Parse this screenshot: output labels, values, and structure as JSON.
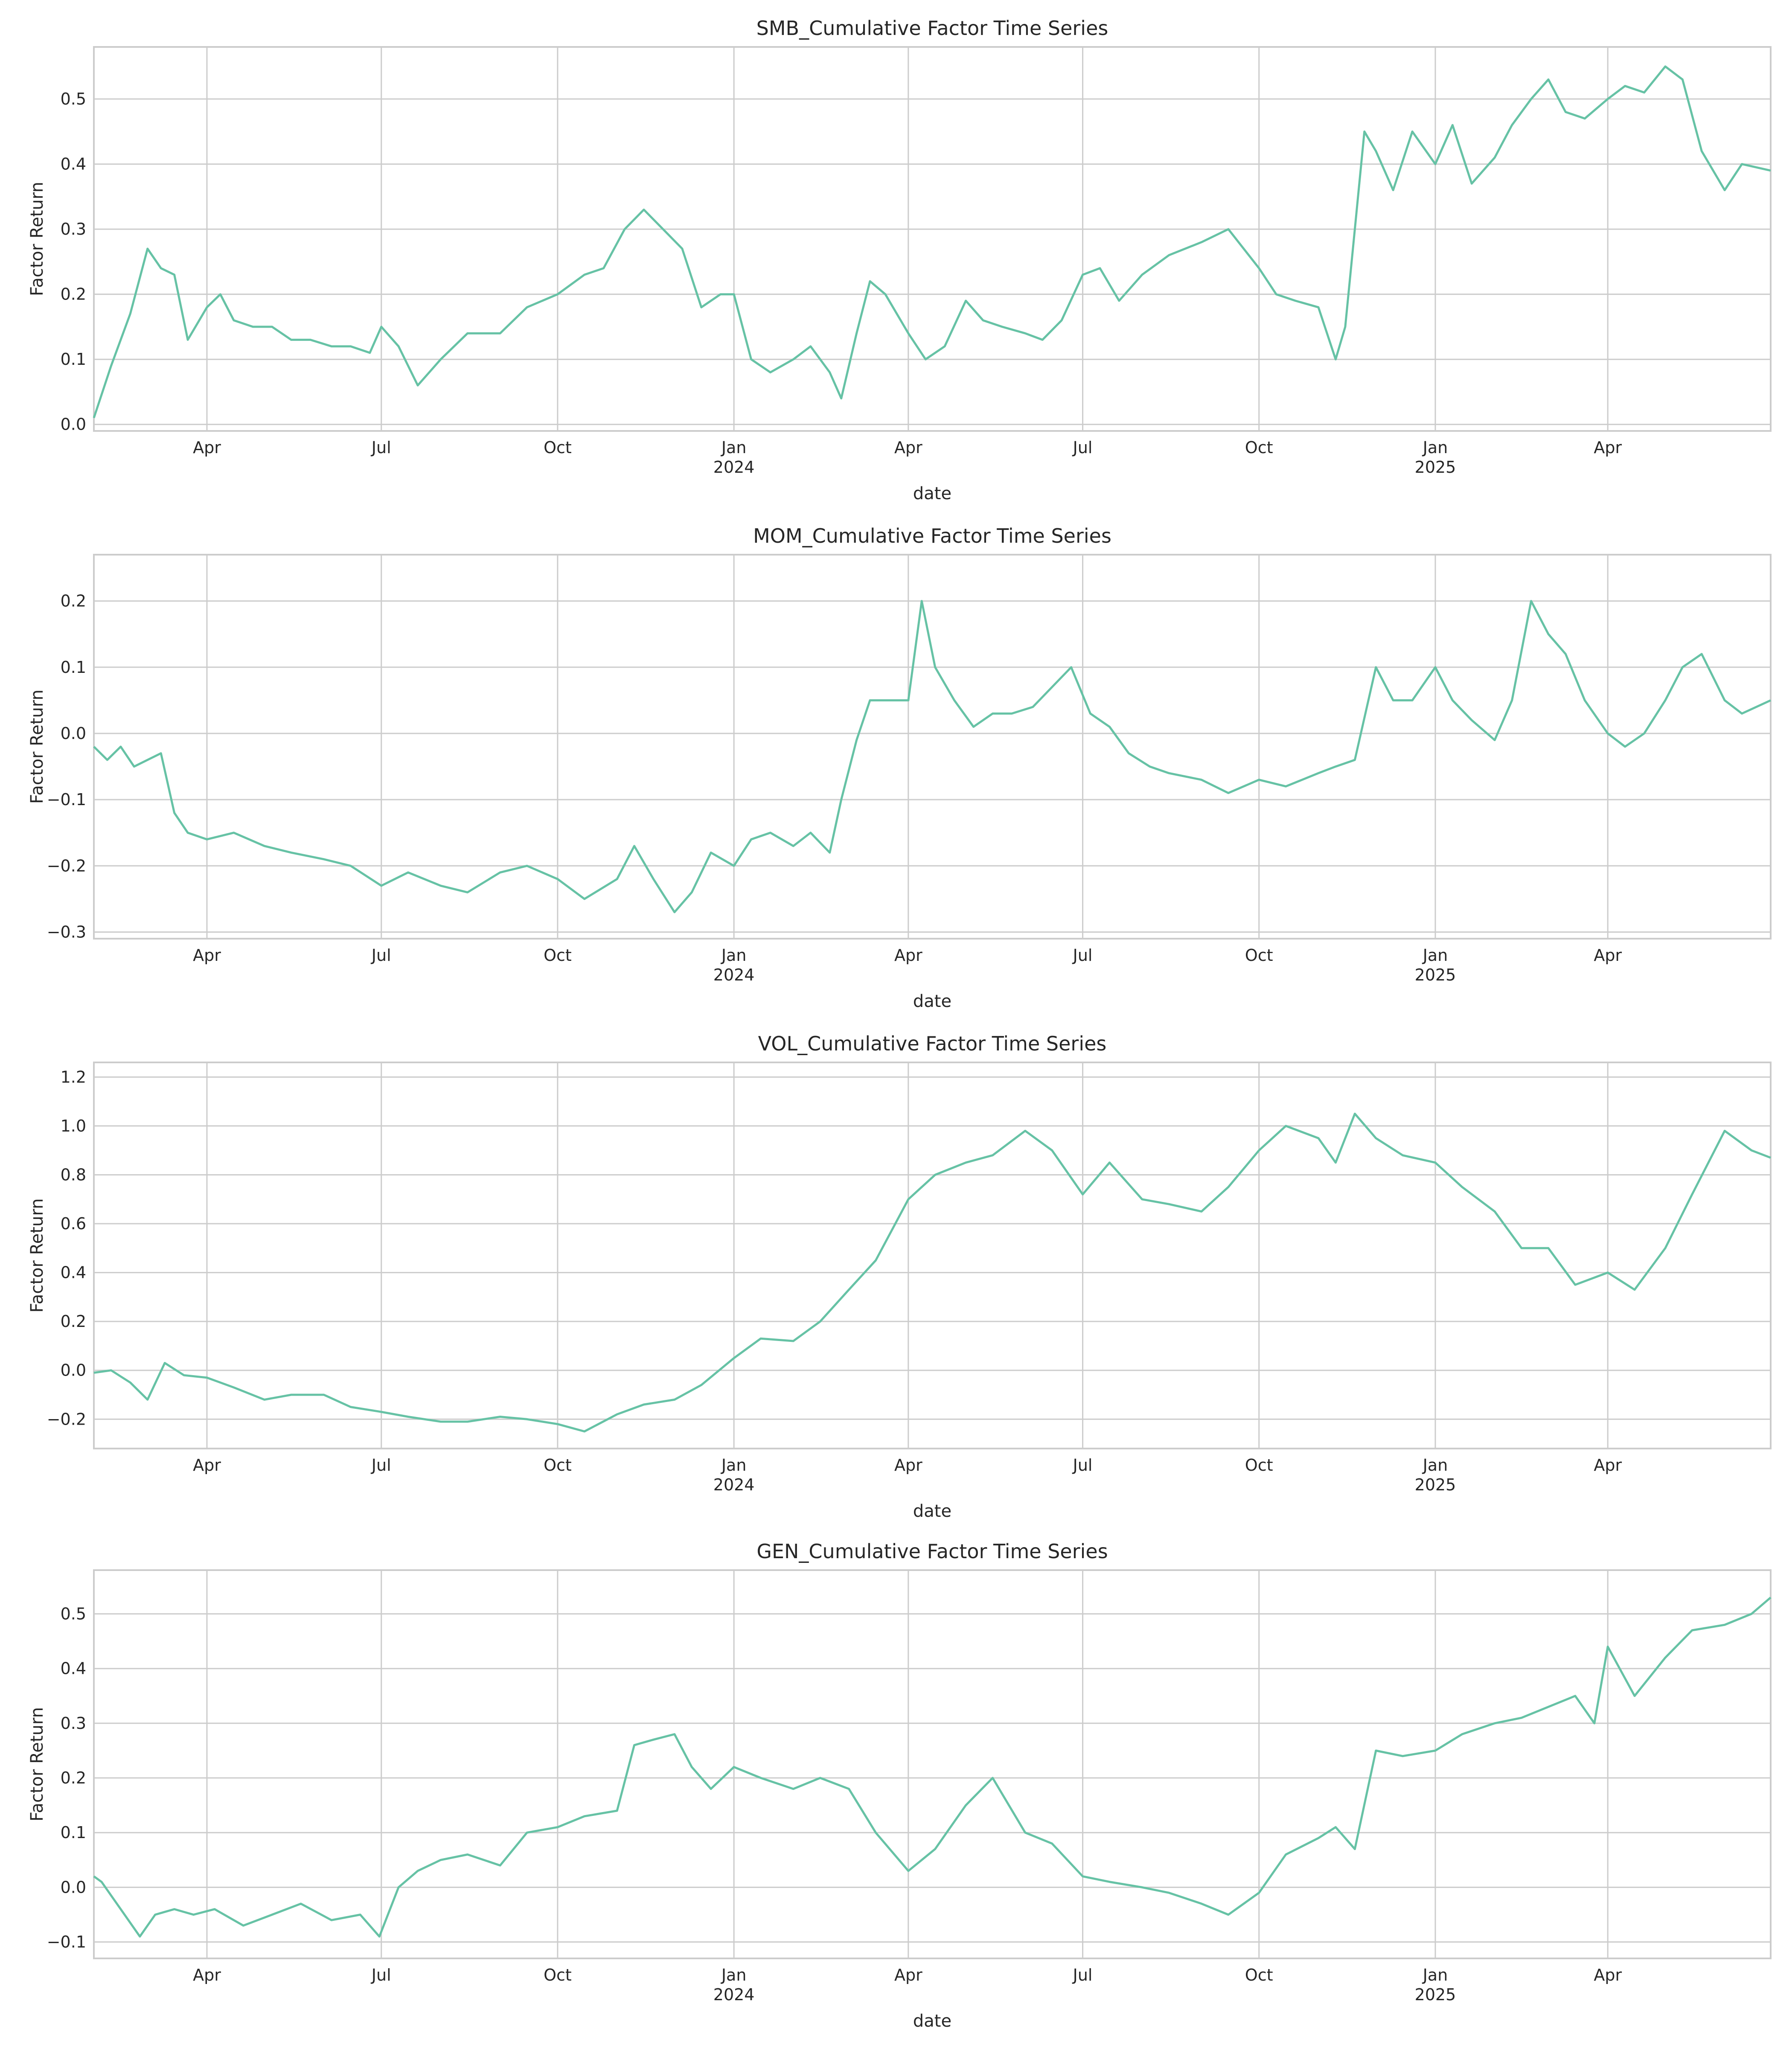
{
  "figure": {
    "line_color": "#66c2a5",
    "grid_color": "#cccccc",
    "background": "#ffffff"
  },
  "chart_data": [
    {
      "type": "line",
      "title": "SMB_Cumulative Factor Time Series",
      "xlabel": "date",
      "ylabel": "Factor Return",
      "xlim": [
        "2023-02-01",
        "2025-06-25"
      ],
      "ylim": [
        -0.01,
        0.58
      ],
      "yticks": [
        0.0,
        0.1,
        0.2,
        0.3,
        0.4,
        0.5
      ],
      "ytick_labels": [
        "0.0",
        "0.1",
        "0.2",
        "0.3",
        "0.4",
        "0.5"
      ],
      "xticks": [
        {
          "date": "2023-04-01",
          "label": "Apr"
        },
        {
          "date": "2023-07-01",
          "label": "Jul"
        },
        {
          "date": "2023-10-01",
          "label": "Oct"
        },
        {
          "date": "2024-01-01",
          "label": "Jan",
          "year": "2024"
        },
        {
          "date": "2024-04-01",
          "label": "Apr"
        },
        {
          "date": "2024-07-01",
          "label": "Jul"
        },
        {
          "date": "2024-10-01",
          "label": "Oct"
        },
        {
          "date": "2025-01-01",
          "label": "Jan",
          "year": "2025"
        },
        {
          "date": "2025-04-01",
          "label": "Apr"
        }
      ],
      "grid": true,
      "series": [
        {
          "x": [
            "2023-02-01",
            "2023-02-10",
            "2023-02-20",
            "2023-03-01",
            "2023-03-08",
            "2023-03-15",
            "2023-03-22",
            "2023-04-01",
            "2023-04-08",
            "2023-04-15",
            "2023-04-25",
            "2023-05-05",
            "2023-05-15",
            "2023-05-25",
            "2023-06-05",
            "2023-06-15",
            "2023-06-25",
            "2023-07-01",
            "2023-07-10",
            "2023-07-20",
            "2023-08-01",
            "2023-08-15",
            "2023-09-01",
            "2023-09-15",
            "2023-10-01",
            "2023-10-15",
            "2023-10-25",
            "2023-11-05",
            "2023-11-15",
            "2023-11-25",
            "2023-12-05",
            "2023-12-15",
            "2023-12-25",
            "2024-01-01",
            "2024-01-10",
            "2024-01-20",
            "2024-02-01",
            "2024-02-10",
            "2024-02-20",
            "2024-02-26",
            "2024-03-05",
            "2024-03-12",
            "2024-03-20",
            "2024-04-01",
            "2024-04-10",
            "2024-04-20",
            "2024-05-01",
            "2024-05-10",
            "2024-05-20",
            "2024-06-01",
            "2024-06-10",
            "2024-06-20",
            "2024-07-01",
            "2024-07-10",
            "2024-07-20",
            "2024-08-01",
            "2024-08-15",
            "2024-09-01",
            "2024-09-15",
            "2024-10-01",
            "2024-10-10",
            "2024-10-20",
            "2024-11-01",
            "2024-11-10",
            "2024-11-15",
            "2024-11-20",
            "2024-11-25",
            "2024-12-01",
            "2024-12-10",
            "2024-12-20",
            "2025-01-01",
            "2025-01-10",
            "2025-01-20",
            "2025-02-01",
            "2025-02-10",
            "2025-02-20",
            "2025-03-01",
            "2025-03-10",
            "2025-03-20",
            "2025-04-01",
            "2025-04-10",
            "2025-04-20",
            "2025-05-01",
            "2025-05-10",
            "2025-05-20",
            "2025-06-01",
            "2025-06-10",
            "2025-06-25"
          ],
          "y": [
            0.01,
            0.09,
            0.17,
            0.27,
            0.24,
            0.23,
            0.13,
            0.18,
            0.2,
            0.16,
            0.15,
            0.15,
            0.13,
            0.13,
            0.12,
            0.12,
            0.11,
            0.15,
            0.12,
            0.06,
            0.1,
            0.14,
            0.14,
            0.18,
            0.2,
            0.23,
            0.24,
            0.3,
            0.33,
            0.3,
            0.27,
            0.18,
            0.2,
            0.2,
            0.1,
            0.08,
            0.1,
            0.12,
            0.08,
            0.04,
            0.14,
            0.22,
            0.2,
            0.14,
            0.1,
            0.12,
            0.19,
            0.16,
            0.15,
            0.14,
            0.13,
            0.16,
            0.23,
            0.24,
            0.19,
            0.23,
            0.26,
            0.28,
            0.3,
            0.24,
            0.2,
            0.19,
            0.18,
            0.1,
            0.15,
            0.3,
            0.45,
            0.42,
            0.36,
            0.45,
            0.4,
            0.46,
            0.37,
            0.41,
            0.46,
            0.5,
            0.53,
            0.48,
            0.47,
            0.5,
            0.52,
            0.51,
            0.55,
            0.53,
            0.42,
            0.36,
            0.4,
            0.39
          ]
        }
      ]
    },
    {
      "type": "line",
      "title": "MOM_Cumulative Factor Time Series",
      "xlabel": "date",
      "ylabel": "Factor Return",
      "xlim": [
        "2023-02-01",
        "2025-06-25"
      ],
      "ylim": [
        -0.31,
        0.27
      ],
      "yticks": [
        -0.3,
        -0.2,
        -0.1,
        0.0,
        0.1,
        0.2
      ],
      "ytick_labels": [
        "−0.3",
        "−0.2",
        "−0.1",
        "0.0",
        "0.1",
        "0.2"
      ],
      "xticks": [
        {
          "date": "2023-04-01",
          "label": "Apr"
        },
        {
          "date": "2023-07-01",
          "label": "Jul"
        },
        {
          "date": "2023-10-01",
          "label": "Oct"
        },
        {
          "date": "2024-01-01",
          "label": "Jan",
          "year": "2024"
        },
        {
          "date": "2024-04-01",
          "label": "Apr"
        },
        {
          "date": "2024-07-01",
          "label": "Jul"
        },
        {
          "date": "2024-10-01",
          "label": "Oct"
        },
        {
          "date": "2025-01-01",
          "label": "Jan",
          "year": "2025"
        },
        {
          "date": "2025-04-01",
          "label": "Apr"
        }
      ],
      "grid": true,
      "series": [
        {
          "x": [
            "2023-02-01",
            "2023-02-08",
            "2023-02-15",
            "2023-02-22",
            "2023-03-01",
            "2023-03-08",
            "2023-03-15",
            "2023-03-22",
            "2023-04-01",
            "2023-04-15",
            "2023-05-01",
            "2023-05-15",
            "2023-06-01",
            "2023-06-15",
            "2023-07-01",
            "2023-07-15",
            "2023-08-01",
            "2023-08-15",
            "2023-09-01",
            "2023-09-15",
            "2023-10-01",
            "2023-10-15",
            "2023-11-01",
            "2023-11-10",
            "2023-11-20",
            "2023-12-01",
            "2023-12-10",
            "2023-12-20",
            "2024-01-01",
            "2024-01-10",
            "2024-01-20",
            "2024-02-01",
            "2024-02-10",
            "2024-02-20",
            "2024-02-26",
            "2024-03-05",
            "2024-03-12",
            "2024-03-20",
            "2024-04-01",
            "2024-04-08",
            "2024-04-15",
            "2024-04-25",
            "2024-05-05",
            "2024-05-15",
            "2024-05-25",
            "2024-06-05",
            "2024-06-15",
            "2024-06-25",
            "2024-07-05",
            "2024-07-15",
            "2024-07-25",
            "2024-08-05",
            "2024-08-15",
            "2024-09-01",
            "2024-09-15",
            "2024-10-01",
            "2024-10-15",
            "2024-11-01",
            "2024-11-10",
            "2024-11-20",
            "2024-12-01",
            "2024-12-10",
            "2024-12-20",
            "2025-01-01",
            "2025-01-10",
            "2025-01-20",
            "2025-02-01",
            "2025-02-10",
            "2025-02-20",
            "2025-03-01",
            "2025-03-10",
            "2025-03-20",
            "2025-04-01",
            "2025-04-10",
            "2025-04-20",
            "2025-05-01",
            "2025-05-10",
            "2025-05-20",
            "2025-06-01",
            "2025-06-10",
            "2025-06-25"
          ],
          "y": [
            -0.02,
            -0.04,
            -0.02,
            -0.05,
            -0.04,
            -0.03,
            -0.12,
            -0.15,
            -0.16,
            -0.15,
            -0.17,
            -0.18,
            -0.19,
            -0.2,
            -0.23,
            -0.21,
            -0.23,
            -0.24,
            -0.21,
            -0.2,
            -0.22,
            -0.25,
            -0.22,
            -0.17,
            -0.22,
            -0.27,
            -0.24,
            -0.18,
            -0.2,
            -0.16,
            -0.15,
            -0.17,
            -0.15,
            -0.18,
            -0.1,
            -0.01,
            0.05,
            0.05,
            0.05,
            0.2,
            0.1,
            0.05,
            0.01,
            0.03,
            0.03,
            0.04,
            0.07,
            0.1,
            0.03,
            0.01,
            -0.03,
            -0.05,
            -0.06,
            -0.07,
            -0.09,
            -0.07,
            -0.08,
            -0.06,
            -0.05,
            -0.04,
            0.1,
            0.05,
            0.05,
            0.1,
            0.05,
            0.02,
            -0.01,
            0.05,
            0.2,
            0.15,
            0.12,
            0.05,
            0.0,
            -0.02,
            0.0,
            0.05,
            0.1,
            0.12,
            0.05,
            0.03,
            0.05
          ]
        }
      ]
    },
    {
      "type": "line",
      "title": "VOL_Cumulative Factor Time Series",
      "xlabel": "date",
      "ylabel": "Factor Return",
      "xlim": [
        "2023-02-01",
        "2025-06-25"
      ],
      "ylim": [
        -0.32,
        1.26
      ],
      "yticks": [
        -0.2,
        0.0,
        0.2,
        0.4,
        0.6,
        0.8,
        1.0,
        1.2
      ],
      "ytick_labels": [
        "−0.2",
        "0.0",
        "0.2",
        "0.4",
        "0.6",
        "0.8",
        "1.0",
        "1.2"
      ],
      "xticks": [
        {
          "date": "2023-04-01",
          "label": "Apr"
        },
        {
          "date": "2023-07-01",
          "label": "Jul"
        },
        {
          "date": "2023-10-01",
          "label": "Oct"
        },
        {
          "date": "2024-01-01",
          "label": "Jan",
          "year": "2024"
        },
        {
          "date": "2024-04-01",
          "label": "Apr"
        },
        {
          "date": "2024-07-01",
          "label": "Jul"
        },
        {
          "date": "2024-10-01",
          "label": "Oct"
        },
        {
          "date": "2025-01-01",
          "label": "Jan",
          "year": "2025"
        },
        {
          "date": "2025-04-01",
          "label": "Apr"
        }
      ],
      "grid": true,
      "series": [
        {
          "x": [
            "2023-02-01",
            "2023-02-10",
            "2023-02-20",
            "2023-03-01",
            "2023-03-10",
            "2023-03-20",
            "2023-04-01",
            "2023-04-15",
            "2023-05-01",
            "2023-05-15",
            "2023-06-01",
            "2023-06-15",
            "2023-07-01",
            "2023-07-15",
            "2023-08-01",
            "2023-08-15",
            "2023-09-01",
            "2023-09-15",
            "2023-10-01",
            "2023-10-15",
            "2023-11-01",
            "2023-11-15",
            "2023-12-01",
            "2023-12-15",
            "2024-01-01",
            "2024-01-15",
            "2024-02-01",
            "2024-02-15",
            "2024-03-01",
            "2024-03-15",
            "2024-04-01",
            "2024-04-15",
            "2024-05-01",
            "2024-05-15",
            "2024-06-01",
            "2024-06-15",
            "2024-07-01",
            "2024-07-15",
            "2024-08-01",
            "2024-08-15",
            "2024-09-01",
            "2024-09-15",
            "2024-10-01",
            "2024-10-15",
            "2024-11-01",
            "2024-11-10",
            "2024-11-20",
            "2024-12-01",
            "2024-12-15",
            "2025-01-01",
            "2025-01-15",
            "2025-02-01",
            "2025-02-15",
            "2025-03-01",
            "2025-03-15",
            "2025-04-01",
            "2025-04-15",
            "2025-05-01",
            "2025-05-15",
            "2025-06-01",
            "2025-06-15",
            "2025-06-25"
          ],
          "y": [
            -0.01,
            0.0,
            -0.05,
            -0.12,
            0.03,
            -0.02,
            -0.03,
            -0.07,
            -0.12,
            -0.1,
            -0.1,
            -0.15,
            -0.17,
            -0.19,
            -0.21,
            -0.21,
            -0.19,
            -0.2,
            -0.22,
            -0.25,
            -0.18,
            -0.14,
            -0.12,
            -0.06,
            0.05,
            0.13,
            0.12,
            0.2,
            0.33,
            0.45,
            0.7,
            0.8,
            0.85,
            0.88,
            0.98,
            0.9,
            0.72,
            0.85,
            0.7,
            0.68,
            0.65,
            0.75,
            0.9,
            1.0,
            0.95,
            0.85,
            1.05,
            0.95,
            0.88,
            0.85,
            0.75,
            0.65,
            0.5,
            0.5,
            0.35,
            0.4,
            0.33,
            0.5,
            0.72,
            0.98,
            0.9,
            0.87
          ]
        }
      ]
    },
    {
      "type": "line",
      "title": "GEN_Cumulative Factor Time Series",
      "xlabel": "date",
      "ylabel": "Factor Return",
      "xlim": [
        "2023-02-01",
        "2025-06-25"
      ],
      "ylim": [
        -0.13,
        0.58
      ],
      "yticks": [
        -0.1,
        0.0,
        0.1,
        0.2,
        0.3,
        0.4,
        0.5
      ],
      "ytick_labels": [
        "−0.1",
        "0.0",
        "0.1",
        "0.2",
        "0.3",
        "0.4",
        "0.5"
      ],
      "xticks": [
        {
          "date": "2023-04-01",
          "label": "Apr"
        },
        {
          "date": "2023-07-01",
          "label": "Jul"
        },
        {
          "date": "2023-10-01",
          "label": "Oct"
        },
        {
          "date": "2024-01-01",
          "label": "Jan",
          "year": "2024"
        },
        {
          "date": "2024-04-01",
          "label": "Apr"
        },
        {
          "date": "2024-07-01",
          "label": "Jul"
        },
        {
          "date": "2024-10-01",
          "label": "Oct"
        },
        {
          "date": "2025-01-01",
          "label": "Jan",
          "year": "2025"
        },
        {
          "date": "2025-04-01",
          "label": "Apr"
        }
      ],
      "grid": true,
      "series": [
        {
          "x": [
            "2023-02-01",
            "2023-02-05",
            "2023-02-15",
            "2023-02-25",
            "2023-03-05",
            "2023-03-15",
            "2023-03-25",
            "2023-04-05",
            "2023-04-20",
            "2023-05-05",
            "2023-05-20",
            "2023-06-05",
            "2023-06-20",
            "2023-06-30",
            "2023-07-10",
            "2023-07-20",
            "2023-08-01",
            "2023-08-15",
            "2023-09-01",
            "2023-09-15",
            "2023-10-01",
            "2023-10-15",
            "2023-11-01",
            "2023-11-10",
            "2023-11-20",
            "2023-12-01",
            "2023-12-10",
            "2023-12-20",
            "2024-01-01",
            "2024-01-15",
            "2024-02-01",
            "2024-02-15",
            "2024-03-01",
            "2024-03-15",
            "2024-04-01",
            "2024-04-15",
            "2024-05-01",
            "2024-05-15",
            "2024-06-01",
            "2024-06-15",
            "2024-07-01",
            "2024-07-15",
            "2024-08-01",
            "2024-08-15",
            "2024-09-01",
            "2024-09-15",
            "2024-10-01",
            "2024-10-15",
            "2024-11-01",
            "2024-11-10",
            "2024-11-20",
            "2024-12-01",
            "2024-12-15",
            "2025-01-01",
            "2025-01-15",
            "2025-02-01",
            "2025-02-15",
            "2025-03-01",
            "2025-03-15",
            "2025-03-25",
            "2025-04-01",
            "2025-04-15",
            "2025-05-01",
            "2025-05-15",
            "2025-06-01",
            "2025-06-15",
            "2025-06-25"
          ],
          "y": [
            0.02,
            0.01,
            -0.04,
            -0.09,
            -0.05,
            -0.04,
            -0.05,
            -0.04,
            -0.07,
            -0.05,
            -0.03,
            -0.06,
            -0.05,
            -0.09,
            0.0,
            0.03,
            0.05,
            0.06,
            0.04,
            0.1,
            0.11,
            0.13,
            0.14,
            0.26,
            0.27,
            0.28,
            0.22,
            0.18,
            0.22,
            0.2,
            0.18,
            0.2,
            0.18,
            0.1,
            0.03,
            0.07,
            0.15,
            0.2,
            0.1,
            0.08,
            0.02,
            0.01,
            0.0,
            -0.01,
            -0.03,
            -0.05,
            -0.01,
            0.06,
            0.09,
            0.11,
            0.07,
            0.25,
            0.24,
            0.25,
            0.28,
            0.3,
            0.31,
            0.33,
            0.35,
            0.3,
            0.44,
            0.35,
            0.42,
            0.47,
            0.48,
            0.5,
            0.53
          ]
        }
      ]
    }
  ]
}
